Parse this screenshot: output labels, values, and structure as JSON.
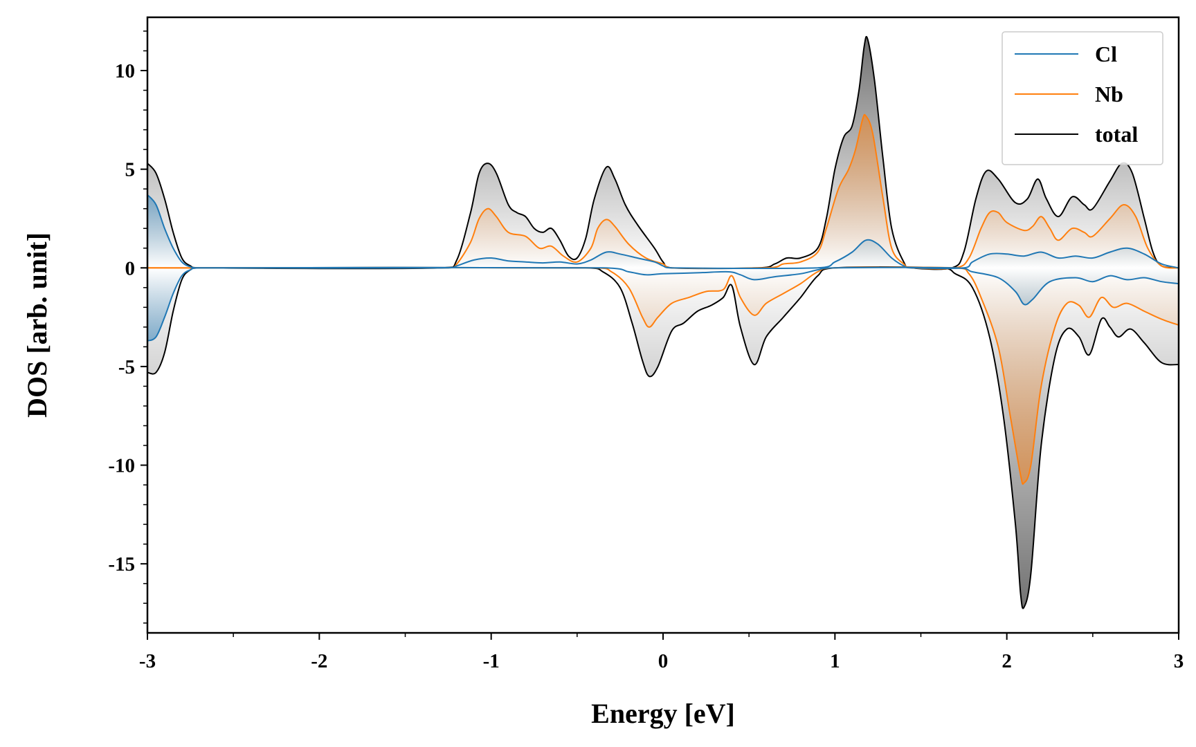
{
  "chart_data": {
    "type": "line",
    "xlabel": "Energy [eV]",
    "ylabel": "DOS [arb. unit]",
    "xlim": [
      -3,
      3
    ],
    "ylim": [
      -18.5,
      12.7
    ],
    "xticks": [
      -3,
      -2,
      -1,
      0,
      1,
      2,
      3
    ],
    "xtick_labels": [
      "-3",
      "-2",
      "-1",
      "0",
      "1",
      "2",
      "3"
    ],
    "yticks": [
      10,
      5,
      0,
      -5,
      -10,
      -15
    ],
    "ytick_labels": [
      "10",
      "5",
      "0",
      "-5",
      "-10",
      "-15"
    ],
    "grid": false,
    "legend_position": "top-right",
    "legend": [
      "Cl",
      "Nb",
      "total"
    ],
    "series": [
      {
        "name": "Cl",
        "color": "#1f77b4",
        "up": [
          [
            -3.0,
            3.7
          ],
          [
            -2.95,
            3.2
          ],
          [
            -2.9,
            2.0
          ],
          [
            -2.85,
            1.0
          ],
          [
            -2.8,
            0.3
          ],
          [
            -2.75,
            0.05
          ],
          [
            -2.7,
            0.0
          ],
          [
            -1.25,
            0.0
          ],
          [
            -1.2,
            0.1
          ],
          [
            -1.1,
            0.4
          ],
          [
            -1.0,
            0.5
          ],
          [
            -0.9,
            0.35
          ],
          [
            -0.8,
            0.3
          ],
          [
            -0.7,
            0.25
          ],
          [
            -0.6,
            0.3
          ],
          [
            -0.5,
            0.2
          ],
          [
            -0.42,
            0.4
          ],
          [
            -0.33,
            0.8
          ],
          [
            -0.25,
            0.7
          ],
          [
            -0.15,
            0.5
          ],
          [
            -0.05,
            0.3
          ],
          [
            0.0,
            0.1
          ],
          [
            0.05,
            0.0
          ],
          [
            0.9,
            0.0
          ],
          [
            1.0,
            0.3
          ],
          [
            1.1,
            0.8
          ],
          [
            1.18,
            1.4
          ],
          [
            1.25,
            1.2
          ],
          [
            1.33,
            0.5
          ],
          [
            1.4,
            0.1
          ],
          [
            1.45,
            0.0
          ],
          [
            1.75,
            0.0
          ],
          [
            1.8,
            0.3
          ],
          [
            1.9,
            0.7
          ],
          [
            2.0,
            0.7
          ],
          [
            2.1,
            0.6
          ],
          [
            2.2,
            0.8
          ],
          [
            2.3,
            0.5
          ],
          [
            2.4,
            0.6
          ],
          [
            2.5,
            0.5
          ],
          [
            2.6,
            0.8
          ],
          [
            2.7,
            1.0
          ],
          [
            2.8,
            0.7
          ],
          [
            2.9,
            0.2
          ],
          [
            3.0,
            0.0
          ]
        ],
        "down": [
          [
            -3.0,
            -3.7
          ],
          [
            -2.95,
            -3.5
          ],
          [
            -2.9,
            -2.5
          ],
          [
            -2.85,
            -1.3
          ],
          [
            -2.8,
            -0.4
          ],
          [
            -2.75,
            -0.1
          ],
          [
            -2.7,
            0.0
          ],
          [
            -0.35,
            0.0
          ],
          [
            -0.2,
            -0.2
          ],
          [
            -0.1,
            -0.35
          ],
          [
            0.0,
            -0.3
          ],
          [
            0.2,
            -0.25
          ],
          [
            0.38,
            -0.2
          ],
          [
            0.45,
            -0.35
          ],
          [
            0.53,
            -0.6
          ],
          [
            0.65,
            -0.45
          ],
          [
            0.8,
            -0.3
          ],
          [
            0.9,
            -0.1
          ],
          [
            1.0,
            0.0
          ],
          [
            1.7,
            0.0
          ],
          [
            1.8,
            -0.2
          ],
          [
            1.95,
            -0.5
          ],
          [
            2.05,
            -1.2
          ],
          [
            2.1,
            -1.85
          ],
          [
            2.15,
            -1.6
          ],
          [
            2.25,
            -0.7
          ],
          [
            2.4,
            -0.5
          ],
          [
            2.5,
            -0.7
          ],
          [
            2.6,
            -0.4
          ],
          [
            2.7,
            -0.6
          ],
          [
            2.8,
            -0.5
          ],
          [
            2.9,
            -0.7
          ],
          [
            3.0,
            -0.8
          ]
        ]
      },
      {
        "name": "Nb",
        "color": "#ff7f0e",
        "up": [
          [
            -3.0,
            0.0
          ],
          [
            -1.25,
            0.0
          ],
          [
            -1.2,
            0.2
          ],
          [
            -1.12,
            1.3
          ],
          [
            -1.07,
            2.5
          ],
          [
            -1.02,
            3.0
          ],
          [
            -0.97,
            2.6
          ],
          [
            -0.9,
            1.8
          ],
          [
            -0.8,
            1.6
          ],
          [
            -0.72,
            1.0
          ],
          [
            -0.65,
            1.1
          ],
          [
            -0.58,
            0.6
          ],
          [
            -0.5,
            0.3
          ],
          [
            -0.42,
            1.0
          ],
          [
            -0.38,
            2.0
          ],
          [
            -0.33,
            2.45
          ],
          [
            -0.28,
            2.1
          ],
          [
            -0.2,
            1.2
          ],
          [
            -0.1,
            0.5
          ],
          [
            0.0,
            0.2
          ],
          [
            0.05,
            0.0
          ],
          [
            0.6,
            0.0
          ],
          [
            0.7,
            0.2
          ],
          [
            0.8,
            0.3
          ],
          [
            0.9,
            0.8
          ],
          [
            0.95,
            2.0
          ],
          [
            1.02,
            4.0
          ],
          [
            1.08,
            5.0
          ],
          [
            1.12,
            6.0
          ],
          [
            1.16,
            7.5
          ],
          [
            1.18,
            7.7
          ],
          [
            1.22,
            6.8
          ],
          [
            1.28,
            3.5
          ],
          [
            1.33,
            1.0
          ],
          [
            1.4,
            0.2
          ],
          [
            1.45,
            0.0
          ],
          [
            1.7,
            0.0
          ],
          [
            1.78,
            0.5
          ],
          [
            1.85,
            2.0
          ],
          [
            1.9,
            2.8
          ],
          [
            1.95,
            2.8
          ],
          [
            2.0,
            2.3
          ],
          [
            2.1,
            1.9
          ],
          [
            2.15,
            2.1
          ],
          [
            2.2,
            2.6
          ],
          [
            2.25,
            2.0
          ],
          [
            2.3,
            1.4
          ],
          [
            2.38,
            2.0
          ],
          [
            2.45,
            1.8
          ],
          [
            2.5,
            1.6
          ],
          [
            2.6,
            2.5
          ],
          [
            2.68,
            3.2
          ],
          [
            2.75,
            2.6
          ],
          [
            2.82,
            1.0
          ],
          [
            2.9,
            0.1
          ],
          [
            3.0,
            0.0
          ]
        ],
        "down": [
          [
            -3.0,
            0.0
          ],
          [
            -0.4,
            0.0
          ],
          [
            -0.3,
            -0.2
          ],
          [
            -0.2,
            -1.0
          ],
          [
            -0.12,
            -2.5
          ],
          [
            -0.08,
            -3.0
          ],
          [
            -0.03,
            -2.5
          ],
          [
            0.05,
            -1.8
          ],
          [
            0.15,
            -1.5
          ],
          [
            0.25,
            -1.2
          ],
          [
            0.35,
            -1.1
          ],
          [
            0.4,
            -0.4
          ],
          [
            0.45,
            -1.5
          ],
          [
            0.53,
            -2.4
          ],
          [
            0.6,
            -1.8
          ],
          [
            0.7,
            -1.3
          ],
          [
            0.8,
            -0.8
          ],
          [
            0.9,
            -0.2
          ],
          [
            1.0,
            0.0
          ],
          [
            1.7,
            0.0
          ],
          [
            1.78,
            -0.3
          ],
          [
            1.85,
            -1.5
          ],
          [
            1.95,
            -4.0
          ],
          [
            2.02,
            -7.5
          ],
          [
            2.08,
            -10.5
          ],
          [
            2.1,
            -10.9
          ],
          [
            2.14,
            -10.0
          ],
          [
            2.2,
            -6.0
          ],
          [
            2.28,
            -3.0
          ],
          [
            2.35,
            -1.8
          ],
          [
            2.42,
            -1.9
          ],
          [
            2.48,
            -2.5
          ],
          [
            2.55,
            -1.5
          ],
          [
            2.62,
            -2.0
          ],
          [
            2.7,
            -1.8
          ],
          [
            2.8,
            -2.2
          ],
          [
            2.9,
            -2.6
          ],
          [
            3.0,
            -2.9
          ]
        ]
      },
      {
        "name": "total",
        "color": "#000000",
        "up": [
          [
            -3.0,
            5.3
          ],
          [
            -2.95,
            4.8
          ],
          [
            -2.9,
            3.5
          ],
          [
            -2.85,
            1.8
          ],
          [
            -2.8,
            0.5
          ],
          [
            -2.75,
            0.1
          ],
          [
            -2.7,
            0.0
          ],
          [
            -1.28,
            0.0
          ],
          [
            -1.2,
            0.4
          ],
          [
            -1.12,
            2.8
          ],
          [
            -1.07,
            4.8
          ],
          [
            -1.02,
            5.3
          ],
          [
            -0.97,
            4.8
          ],
          [
            -0.9,
            3.2
          ],
          [
            -0.85,
            2.8
          ],
          [
            -0.8,
            2.6
          ],
          [
            -0.75,
            2.0
          ],
          [
            -0.7,
            1.8
          ],
          [
            -0.65,
            2.0
          ],
          [
            -0.6,
            1.4
          ],
          [
            -0.55,
            0.6
          ],
          [
            -0.5,
            0.5
          ],
          [
            -0.45,
            1.5
          ],
          [
            -0.4,
            3.5
          ],
          [
            -0.33,
            5.1
          ],
          [
            -0.28,
            4.5
          ],
          [
            -0.22,
            3.2
          ],
          [
            -0.15,
            2.2
          ],
          [
            -0.05,
            1.0
          ],
          [
            0.0,
            0.3
          ],
          [
            0.05,
            0.0
          ],
          [
            0.55,
            0.0
          ],
          [
            0.65,
            0.2
          ],
          [
            0.72,
            0.5
          ],
          [
            0.8,
            0.5
          ],
          [
            0.9,
            1.0
          ],
          [
            0.95,
            2.5
          ],
          [
            1.0,
            5.0
          ],
          [
            1.05,
            6.6
          ],
          [
            1.1,
            7.2
          ],
          [
            1.14,
            9.0
          ],
          [
            1.17,
            11.2
          ],
          [
            1.19,
            11.6
          ],
          [
            1.23,
            9.5
          ],
          [
            1.28,
            5.5
          ],
          [
            1.33,
            2.0
          ],
          [
            1.4,
            0.3
          ],
          [
            1.45,
            0.0
          ],
          [
            1.68,
            0.0
          ],
          [
            1.75,
            0.8
          ],
          [
            1.82,
            3.5
          ],
          [
            1.88,
            4.9
          ],
          [
            1.95,
            4.5
          ],
          [
            2.05,
            3.3
          ],
          [
            2.12,
            3.5
          ],
          [
            2.18,
            4.5
          ],
          [
            2.23,
            3.5
          ],
          [
            2.3,
            2.6
          ],
          [
            2.38,
            3.6
          ],
          [
            2.45,
            3.2
          ],
          [
            2.5,
            3.0
          ],
          [
            2.6,
            4.4
          ],
          [
            2.67,
            5.3
          ],
          [
            2.73,
            4.8
          ],
          [
            2.8,
            2.5
          ],
          [
            2.85,
            0.8
          ],
          [
            2.9,
            0.1
          ],
          [
            3.0,
            0.0
          ]
        ],
        "down": [
          [
            -3.0,
            -5.3
          ],
          [
            -2.95,
            -5.3
          ],
          [
            -2.9,
            -4.3
          ],
          [
            -2.85,
            -2.2
          ],
          [
            -2.8,
            -0.6
          ],
          [
            -2.75,
            -0.1
          ],
          [
            -2.7,
            0.0
          ],
          [
            -0.45,
            0.0
          ],
          [
            -0.35,
            -0.2
          ],
          [
            -0.25,
            -1.0
          ],
          [
            -0.18,
            -2.8
          ],
          [
            -0.12,
            -4.7
          ],
          [
            -0.08,
            -5.5
          ],
          [
            -0.03,
            -5.0
          ],
          [
            0.05,
            -3.2
          ],
          [
            0.12,
            -2.8
          ],
          [
            0.2,
            -2.2
          ],
          [
            0.28,
            -1.9
          ],
          [
            0.35,
            -1.5
          ],
          [
            0.4,
            -0.9
          ],
          [
            0.45,
            -3.0
          ],
          [
            0.53,
            -4.9
          ],
          [
            0.6,
            -3.5
          ],
          [
            0.7,
            -2.5
          ],
          [
            0.8,
            -1.5
          ],
          [
            0.9,
            -0.4
          ],
          [
            1.0,
            0.0
          ],
          [
            1.6,
            0.0
          ],
          [
            1.7,
            -0.3
          ],
          [
            1.8,
            -1.0
          ],
          [
            1.9,
            -3.5
          ],
          [
            1.98,
            -7.5
          ],
          [
            2.05,
            -13.0
          ],
          [
            2.08,
            -16.5
          ],
          [
            2.1,
            -17.2
          ],
          [
            2.14,
            -15.5
          ],
          [
            2.2,
            -9.0
          ],
          [
            2.28,
            -4.5
          ],
          [
            2.35,
            -3.1
          ],
          [
            2.42,
            -3.5
          ],
          [
            2.48,
            -4.4
          ],
          [
            2.55,
            -2.6
          ],
          [
            2.6,
            -3.0
          ],
          [
            2.65,
            -3.5
          ],
          [
            2.72,
            -3.1
          ],
          [
            2.8,
            -3.8
          ],
          [
            2.9,
            -4.8
          ],
          [
            3.0,
            -4.9
          ]
        ]
      }
    ]
  }
}
